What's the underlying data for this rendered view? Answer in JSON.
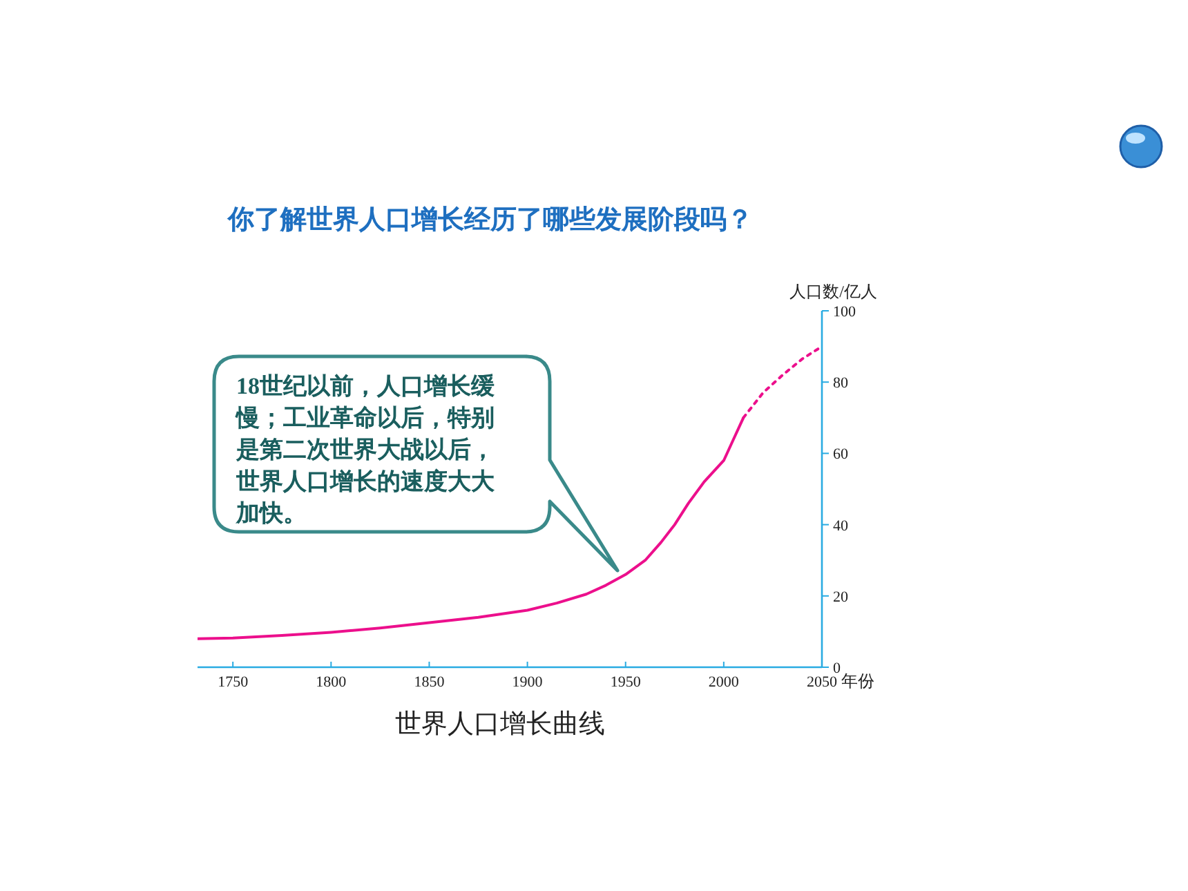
{
  "chart_data": {
    "type": "line",
    "title": "你了解世界人口增长经历了哪些发展阶段吗？",
    "xlabel": "年份",
    "ylabel": "人口数/亿人",
    "annotations": [
      "18世纪以前，人口增长缓慢；工业革命以后，特别是第二次世界大战以后，世界人口增长的速度大大加快。",
      "世界人口增长曲线"
    ],
    "series": [
      {
        "color": "#ec0f8c",
        "line_style": "solid",
        "x": [
          1732,
          1750,
          1775,
          1800,
          1825,
          1850,
          1875,
          1900,
          1915,
          1930,
          1940,
          1950,
          1960,
          1968,
          1975,
          1982,
          1990,
          2000,
          2005,
          2010
        ],
        "values": [
          8,
          8.2,
          8.9,
          9.8,
          11,
          12.5,
          14,
          16,
          18,
          20.5,
          23,
          26,
          30,
          35,
          40,
          46,
          52,
          58,
          64,
          70
        ]
      },
      {
        "color": "#ec0f8c",
        "line_style": "dotted",
        "x": [
          2010,
          2020,
          2030,
          2040,
          2050
        ],
        "values": [
          70,
          77,
          82,
          86.5,
          90
        ]
      }
    ],
    "xlim": [
      1732,
      2050
    ],
    "xticks": [
      1750,
      1800,
      1850,
      1900,
      1950,
      2000,
      2050
    ],
    "ylim": [
      0,
      100
    ],
    "yticks": [
      0,
      20,
      40,
      60,
      80,
      100
    ],
    "grid": false,
    "legend": false,
    "marker": "none"
  }
}
